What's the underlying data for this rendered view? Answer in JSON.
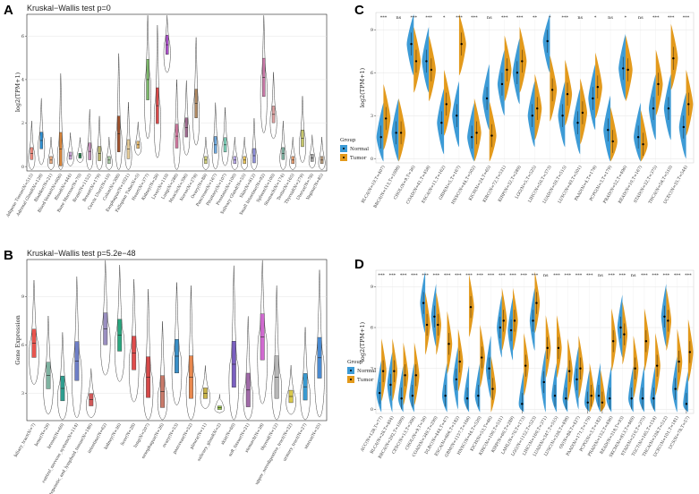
{
  "colors": {
    "normal": "#3d9bd6",
    "tumor": "#e39a1c",
    "grid": "#e4e4e4"
  },
  "chart_data": [
    {
      "panel": "A",
      "type": "violin",
      "title": "Kruskal−Wallis test p=0",
      "ylabel": "log2(TPM+1)",
      "ylim": [
        -0.2,
        7
      ],
      "yticks": [
        0,
        2,
        4,
        6
      ],
      "categories": [
        "Adipose Tissue(N=515)",
        "Adrenal Gland(N=128)",
        "Bladder(N=21)",
        "Blood Vessel(N=606)",
        "Blood(N=444)",
        "Bone Marrow(N=70)",
        "Brain(N=1152)",
        "Breast(N=179)",
        "Cervix Uteri(N=10)",
        "Colon(N=308)",
        "Esophagus(N=1021)",
        "Fallopian Tube(N=5)",
        "Heart(N=377)",
        "Kidney(N=28)",
        "Liver(N=110)",
        "Lung(N=288)",
        "Muscle(N=396)",
        "Nerve(N=278)",
        "Ovary(N=88)",
        "Pancreas(N=167)",
        "Pituitary(N=107)",
        "Prostate(N=100)",
        "Salivary Gland(N=55)",
        "Skin(N=812)",
        "Small Intestine(N=92)",
        "Spleen(N=100)",
        "Stomach(N=174)",
        "Testis(N=165)",
        "Thyroid(N=279)",
        "Uterus(N=78)",
        "Vagina(N=85)"
      ],
      "medians": [
        0.6,
        1.2,
        0.3,
        0.8,
        0.5,
        0.5,
        0.7,
        0.6,
        0.3,
        1.5,
        0.8,
        1,
        4,
        2.8,
        5.6,
        1.4,
        1.8,
        2.9,
        0.3,
        1,
        1,
        0.3,
        0.3,
        0.5,
        4.1,
        2.4,
        0.6,
        0.3,
        1.3,
        0.4,
        0.3
      ],
      "spread": [
        0.5,
        0.7,
        0.3,
        1.4,
        0.3,
        0.2,
        0.7,
        0.6,
        0.3,
        1.5,
        0.8,
        0.3,
        1.7,
        1.5,
        0.8,
        1,
        0.8,
        1.2,
        0.3,
        0.7,
        0.6,
        0.3,
        0.3,
        0.6,
        1.6,
        0.7,
        0.5,
        0.3,
        0.7,
        0.3,
        0.3
      ],
      "box_colors": [
        "#f08a7e",
        "#2f8fd0",
        "#e8a87c",
        "#d6843a",
        "#c9a4d6",
        "#2e8b57",
        "#c48fb8",
        "#b8b36a",
        "#a8c7a3",
        "#a0522d",
        "#e9cf9a",
        "#e3b86d",
        "#7cb76a",
        "#d94a4a",
        "#a94fc7",
        "#d17aa0",
        "#9e6b8f",
        "#b08a63",
        "#cfcf7a",
        "#6fa8dc",
        "#7fd1b9",
        "#b7a6e6",
        "#e8c35a",
        "#8f8fd9",
        "#c97aa8",
        "#dfa2a2",
        "#7fb1a1",
        "#e39a6e",
        "#c6c66a",
        "#a3a3a3",
        "#b89c7e"
      ]
    },
    {
      "panel": "B",
      "type": "violin",
      "title": "Kruskal−Wallis test p=5.2e−48",
      "ylabel": "Gene Expression",
      "ylim": [
        1.3,
        11.3
      ],
      "yticks": [
        3,
        6,
        9
      ],
      "categories": [
        "biliary_tract(N=7)",
        "bone(N=29)",
        "breast(N=60)",
        "central_nervous_system(N=114)",
        "haematopoietic_and_lymphoid_tissue(N=186)",
        "intestine(N=62)",
        "kidney(N=36)",
        "liver(N=28)",
        "lung(N=207)",
        "oesophagus(N=26)",
        "ovary(N=53)",
        "pancreas(N=52)",
        "pleura(N=11)",
        "salivary_gland(N=2)",
        "skin(N=60)",
        "soft_tissue(N=21)",
        "stomach(N=38)",
        "thyroid(N=12)",
        "upper_aerodigestive_tract(N=32)",
        "urinary_tract(N=27)",
        "uterus(N=35)"
      ],
      "medians": [
        6.1,
        4.1,
        3.3,
        5,
        2.6,
        7,
        6.6,
        5.5,
        4,
        3.1,
        5.3,
        4,
        3,
        2.1,
        4.8,
        3.2,
        6.5,
        4,
        2.8,
        3.4,
        5.2
      ],
      "spread": [
        1.6,
        1.5,
        1.4,
        2.2,
        0.7,
        1.8,
        1.8,
        1.9,
        2.3,
        1.8,
        1.9,
        2.4,
        0.6,
        0.2,
        2.6,
        1.9,
        2.6,
        2.4,
        0.7,
        1.5,
        2.3
      ],
      "box_colors": [
        "#e8554e",
        "#7fb3a1",
        "#2e9d8f",
        "#6f7fc7",
        "#d15a5a",
        "#9a8fc0",
        "#2aa77f",
        "#e04d4d",
        "#d64a4a",
        "#c97a6a",
        "#3a8fc7",
        "#e8884e",
        "#c9b44a",
        "#9ac84a",
        "#7a5fc0",
        "#a06aa8",
        "#d06ad0",
        "#b8b8b8",
        "#d8c84a",
        "#3a9ad0",
        "#4a8ad0"
      ]
    },
    {
      "panel": "C",
      "type": "split_violin",
      "ylabel": "log2(TPM+1)",
      "ylim": [
        -0.3,
        10.2
      ],
      "yticks": [
        0,
        3,
        6,
        9
      ],
      "legend_title": "Group",
      "legend": [
        "Normal",
        "Tumor"
      ],
      "categories": [
        "BLCA(N=19,T=407)",
        "BRCA(N=113,T=1098)",
        "CHOL(N=9,T=36)",
        "COAD(N=41,T=458)",
        "ESCA(N=11,T=162)",
        "GBM(N=5,T=167)",
        "HNSC(N=44,T=502)",
        "KICH(N=24,T=65)",
        "KIRC(N=72,T=531)",
        "KIRP(N=32,T=289)",
        "LGG(N=5,T=525)",
        "LIHC(N=50,T=373)",
        "LUAD(N=59,T=515)",
        "LUSC(N=49,T=501)",
        "PAAD(N=4,T=178)",
        "PCPG(N=3,T=179)",
        "PRAD(N=52,T=496)",
        "READ(N=10,T=167)",
        "STAD(N=32,T=375)",
        "THCA(N=58,T=510)",
        "UCEC(N=35,T=544)"
      ],
      "significance": [
        "***",
        "ns",
        "***",
        "***",
        "*",
        "***",
        "***",
        "ns",
        "***",
        "***",
        "**",
        "*",
        "***",
        "ns",
        "*",
        "ns",
        "*",
        "ns",
        "***",
        "***",
        "***"
      ],
      "normal": [
        1.5,
        1.8,
        8,
        6.8,
        2.5,
        3,
        1.5,
        4.2,
        5.2,
        6,
        3,
        8.2,
        3,
        2.5,
        4.2,
        2,
        6.3,
        1.5,
        3.5,
        3.5,
        2.2
      ],
      "tumor": [
        2.8,
        1.8,
        6.8,
        6.2,
        3.8,
        8,
        1.8,
        1.6,
        6.2,
        6.8,
        3.5,
        4.8,
        4.5,
        3.2,
        5,
        1.2,
        6.2,
        1,
        5.2,
        7,
        3.8
      ]
    },
    {
      "panel": "D",
      "type": "split_violin",
      "ylabel": "log2(TPM+1)",
      "ylim": [
        -0.3,
        10.2
      ],
      "yticks": [
        0,
        3,
        6,
        9
      ],
      "legend_title": "Group",
      "legend": [
        "Normal",
        "Tumor"
      ],
      "categories": [
        "ACC(N=128,T=77)",
        "BLCA(N=28,T=404)",
        "BRCA(N=292,T=1099)",
        "CESC(N=13,T=306)",
        "CHOL(N=9,T=36)",
        "COAD(N=349,T=290)",
        "DLBC(N=444,T=47)",
        "ESCA(N=666,T=182)",
        "GBM(N=1157,T=166)",
        "HNSC(N=44,T=520)",
        "KICH(N=53,T=66)",
        "KIRC(N=100,T=531)",
        "KIRP(N=60,T=289)",
        "LAML(N=70,T=173)",
        "LGG(N=1152,T=523)",
        "LIHC(N=160,T=371)",
        "LUAD(N=347,T=515)",
        "LUSC(N=338,T=498)",
        "OV(N=88,T=427)",
        "PAAD(N=171,T=179)",
        "PCPG(N=3,T=182)",
        "PRAD(N=152,T=496)",
        "READ(N=318,T=93)",
        "SKCM(N=813,T=469)",
        "STAD(N=210,T=375)",
        "TGCT(N=165,T=154)",
        "THCA(N=338,T=512)",
        "UCEC(N=101,T=181)",
        "UCS(N=78,T=57)"
      ],
      "significance": [
        "***",
        "***",
        "***",
        "***",
        "***",
        "***",
        "***",
        "***",
        "***",
        "***",
        "***",
        "***",
        "***",
        "***",
        "***",
        "ns",
        "***",
        "***",
        "***",
        "***",
        "ns",
        "***",
        "***",
        "ns",
        "***",
        "***",
        "***",
        "***",
        "***"
      ],
      "normal": [
        1.2,
        1.8,
        0.8,
        1,
        7.8,
        6.8,
        1,
        2.2,
        0.8,
        1,
        3,
        6,
        5.8,
        0.4,
        6.5,
        2,
        1,
        0.8,
        2.2,
        0.5,
        1,
        0.8,
        6,
        0.8,
        0.8,
        0.8,
        6.8,
        1.5,
        0.4
      ],
      "tumor": [
        2.8,
        2.8,
        2.5,
        2.5,
        6.2,
        6.2,
        4.8,
        3.5,
        7.5,
        3.8,
        1.5,
        6.5,
        6.5,
        3.2,
        7.8,
        4.5,
        4.5,
        2.8,
        3,
        1,
        0.5,
        5,
        5.5,
        3,
        5,
        3.2,
        6.5,
        3.5,
        4.2
      ]
    }
  ]
}
